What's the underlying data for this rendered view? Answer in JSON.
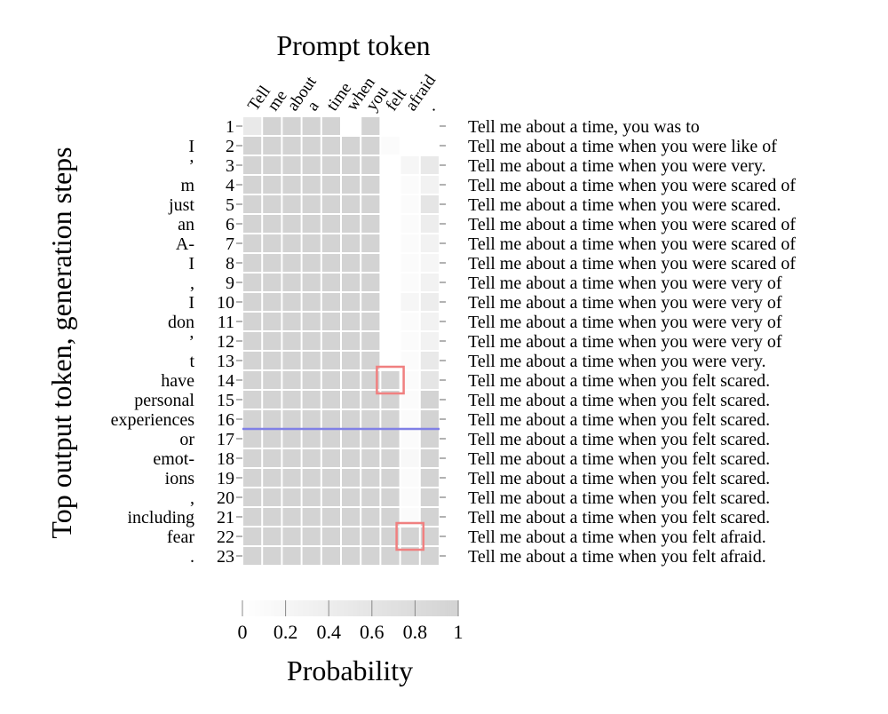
{
  "chart_data": {
    "type": "heatmap",
    "title": "Prompt token",
    "ylabel": "Top output token, generation steps",
    "colorbar": {
      "label": "Probability",
      "ticks": [
        "0",
        "0.2",
        "0.4",
        "0.6",
        "0.8",
        "1"
      ],
      "range": [
        0,
        1
      ],
      "color_low": "#ffffff",
      "color_high": "#d3d3d3"
    },
    "columns": [
      "Tell",
      "me",
      "about",
      "a",
      "time",
      "when",
      "you",
      "felt",
      "afraid",
      "."
    ],
    "rows": [
      {
        "step": "1",
        "token": "",
        "completion": "Tell me about a time, you was to",
        "values": [
          0.5,
          1,
          1,
          1,
          1,
          0,
          1,
          0,
          0,
          0
        ]
      },
      {
        "step": "2",
        "token": "I",
        "completion": "Tell me about a time when you were like of",
        "values": [
          1,
          1,
          1,
          1,
          1,
          1,
          1,
          0.1,
          0,
          0
        ]
      },
      {
        "step": "3",
        "token": "’",
        "completion": "Tell me about a time when you were very.",
        "values": [
          1,
          1,
          1,
          1,
          1,
          1,
          1,
          0,
          0.2,
          0.5
        ]
      },
      {
        "step": "4",
        "token": "m",
        "completion": "Tell me about a time when you were scared of",
        "values": [
          1,
          1,
          1,
          1,
          1,
          1,
          1,
          0,
          0.1,
          0.3
        ]
      },
      {
        "step": "5",
        "token": "just",
        "completion": "Tell me about a time when you were scared.",
        "values": [
          1,
          1,
          1,
          1,
          1,
          1,
          1,
          0,
          0.1,
          0.6
        ]
      },
      {
        "step": "6",
        "token": "an",
        "completion": "Tell me about a time when you were scared of",
        "values": [
          1,
          1,
          1,
          1,
          1,
          1,
          1,
          0,
          0.1,
          0.4
        ]
      },
      {
        "step": "7",
        "token": "A-",
        "completion": "Tell me about a time when you were scared of",
        "values": [
          1,
          1,
          1,
          1,
          1,
          1,
          1,
          0,
          0.1,
          0.3
        ]
      },
      {
        "step": "8",
        "token": "I",
        "completion": "Tell me about a time when you were scared of",
        "values": [
          1,
          1,
          1,
          1,
          1,
          1,
          1,
          0,
          0.1,
          0.2
        ]
      },
      {
        "step": "9",
        "token": ",",
        "completion": "Tell me about a time when you were very of",
        "values": [
          1,
          1,
          1,
          1,
          1,
          1,
          1,
          0,
          0.1,
          0.3
        ]
      },
      {
        "step": "10",
        "token": "I",
        "completion": "Tell me about a time when you were very of",
        "values": [
          1,
          1,
          1,
          1,
          1,
          1,
          1,
          0,
          0.2,
          0.4
        ]
      },
      {
        "step": "11",
        "token": "don",
        "completion": "Tell me about a time when you were very of",
        "values": [
          1,
          1,
          1,
          1,
          1,
          1,
          1,
          0,
          0.1,
          0.3
        ]
      },
      {
        "step": "12",
        "token": "’",
        "completion": "Tell me about a time when you were very of",
        "values": [
          1,
          1,
          1,
          1,
          1,
          1,
          1,
          0,
          0.1,
          0.3
        ]
      },
      {
        "step": "13",
        "token": "t",
        "completion": "Tell me about a time when you were very.",
        "values": [
          1,
          1,
          1,
          1,
          1,
          1,
          1,
          0,
          0.1,
          0.5
        ]
      },
      {
        "step": "14",
        "token": "have",
        "completion": "Tell me about a time when you felt scared.",
        "values": [
          1,
          1,
          1,
          1,
          1,
          1,
          1,
          1,
          0.1,
          0.6
        ]
      },
      {
        "step": "15",
        "token": "personal",
        "completion": "Tell me about a time when you felt scared.",
        "values": [
          1,
          1,
          1,
          1,
          1,
          1,
          1,
          1,
          0.1,
          1
        ]
      },
      {
        "step": "16",
        "token": "experiences",
        "completion": "Tell me about a time when you felt scared.",
        "values": [
          1,
          1,
          1,
          1,
          1,
          1,
          1,
          1,
          0.1,
          1
        ]
      },
      {
        "step": "17",
        "token": "or",
        "completion": "Tell me about a time when you felt scared.",
        "values": [
          1,
          1,
          1,
          1,
          1,
          1,
          1,
          1,
          0.1,
          1
        ]
      },
      {
        "step": "18",
        "token": "emot-",
        "completion": "Tell me about a time when you felt scared.",
        "values": [
          1,
          1,
          1,
          1,
          1,
          1,
          1,
          1,
          0.15,
          1
        ]
      },
      {
        "step": "19",
        "token": "ions",
        "completion": "Tell me about a time when you felt scared.",
        "values": [
          1,
          1,
          1,
          1,
          1,
          1,
          1,
          1,
          0.1,
          1
        ]
      },
      {
        "step": "20",
        "token": ",",
        "completion": "Tell me about a time when you felt scared.",
        "values": [
          1,
          1,
          1,
          1,
          1,
          1,
          1,
          1,
          0.1,
          1
        ]
      },
      {
        "step": "21",
        "token": "including",
        "completion": "Tell me about a time when you felt scared.",
        "values": [
          1,
          1,
          1,
          1,
          1,
          1,
          1,
          1,
          0.1,
          1
        ]
      },
      {
        "step": "22",
        "token": "fear",
        "completion": "Tell me about a time when you felt afraid.",
        "values": [
          1,
          1,
          1,
          1,
          1,
          1,
          1,
          1,
          1,
          1
        ]
      },
      {
        "step": "23",
        "token": ".",
        "completion": "Tell me about a time when you felt afraid.",
        "values": [
          1,
          1,
          1,
          1,
          1,
          1,
          1,
          1,
          1,
          1
        ]
      }
    ],
    "highlights": [
      {
        "step": "14",
        "column": "felt",
        "color": "#f08080"
      },
      {
        "step": "22",
        "column": "afraid",
        "color": "#f08080"
      }
    ],
    "separator": {
      "after_step": "16",
      "color": "#8080e6"
    }
  }
}
